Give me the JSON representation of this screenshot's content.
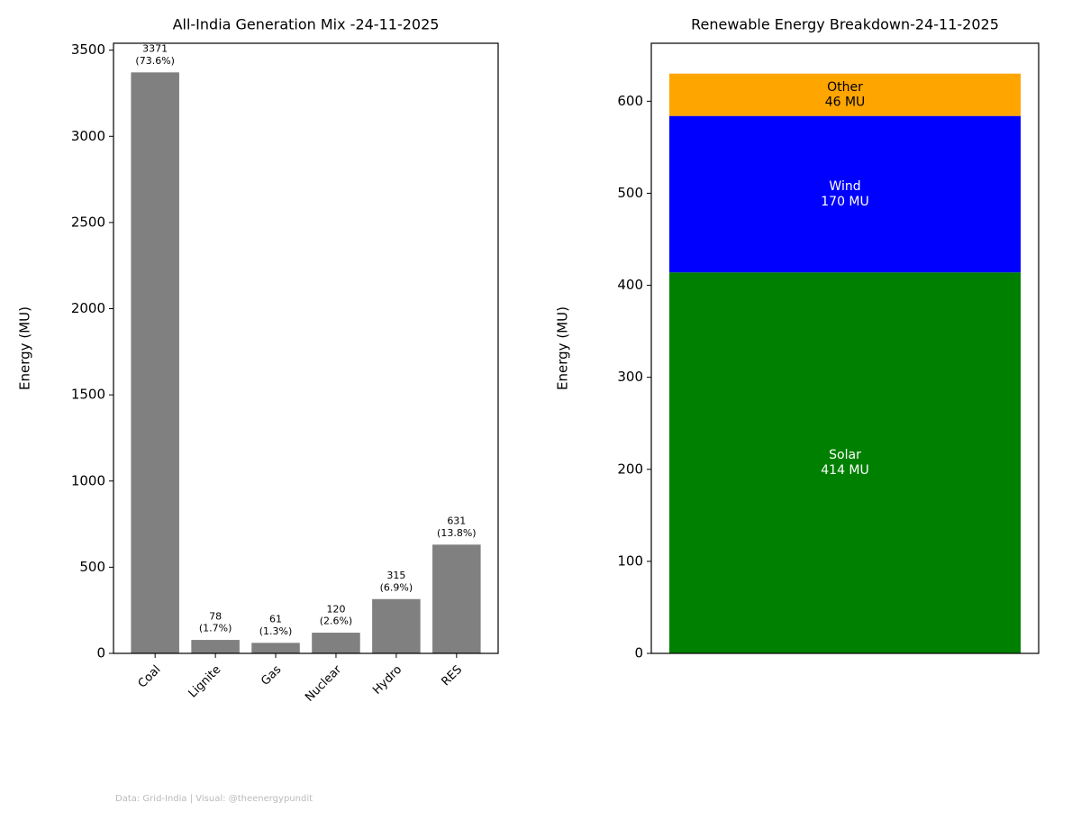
{
  "chart_data": [
    {
      "type": "bar",
      "title": "All-India Generation Mix -24-11-2025",
      "ylabel": "Energy (MU)",
      "categories": [
        "Coal",
        "Lignite",
        "Gas",
        "Nuclear",
        "Hydro",
        "RES"
      ],
      "values": [
        3371,
        78,
        61,
        120,
        315,
        631
      ],
      "value_labels": [
        "3371\n(73.6%)",
        "78\n(1.7%)",
        "61\n(1.3%)",
        "120\n(2.6%)",
        "315\n(6.9%)",
        "631\n(13.8%)"
      ],
      "color": "#808080",
      "ylim": [
        0,
        3540
      ],
      "yticks": [
        0,
        500,
        1000,
        1500,
        2000,
        2500,
        3000,
        3500
      ]
    },
    {
      "type": "stacked",
      "title": "Renewable Energy Breakdown-24-11-2025",
      "ylabel": "Energy (MU)",
      "series": [
        {
          "name": "Solar",
          "color": "#008000",
          "values": [
            414
          ],
          "value_labels": [
            "414 MU"
          ],
          "label_color": "#ffffff"
        },
        {
          "name": "Wind",
          "color": "#0000ff",
          "values": [
            170
          ],
          "value_labels": [
            "170 MU"
          ],
          "label_color": "#ffffff"
        },
        {
          "name": "Other",
          "color": "#ffa500",
          "values": [
            46
          ],
          "value_labels": [
            "46 MU"
          ],
          "label_color": "#000000"
        }
      ],
      "ylim": [
        0,
        663
      ],
      "yticks": [
        0,
        100,
        200,
        300,
        400,
        500,
        600
      ]
    }
  ],
  "footer": "Data: Grid-India | Visual: @theenergypundit"
}
